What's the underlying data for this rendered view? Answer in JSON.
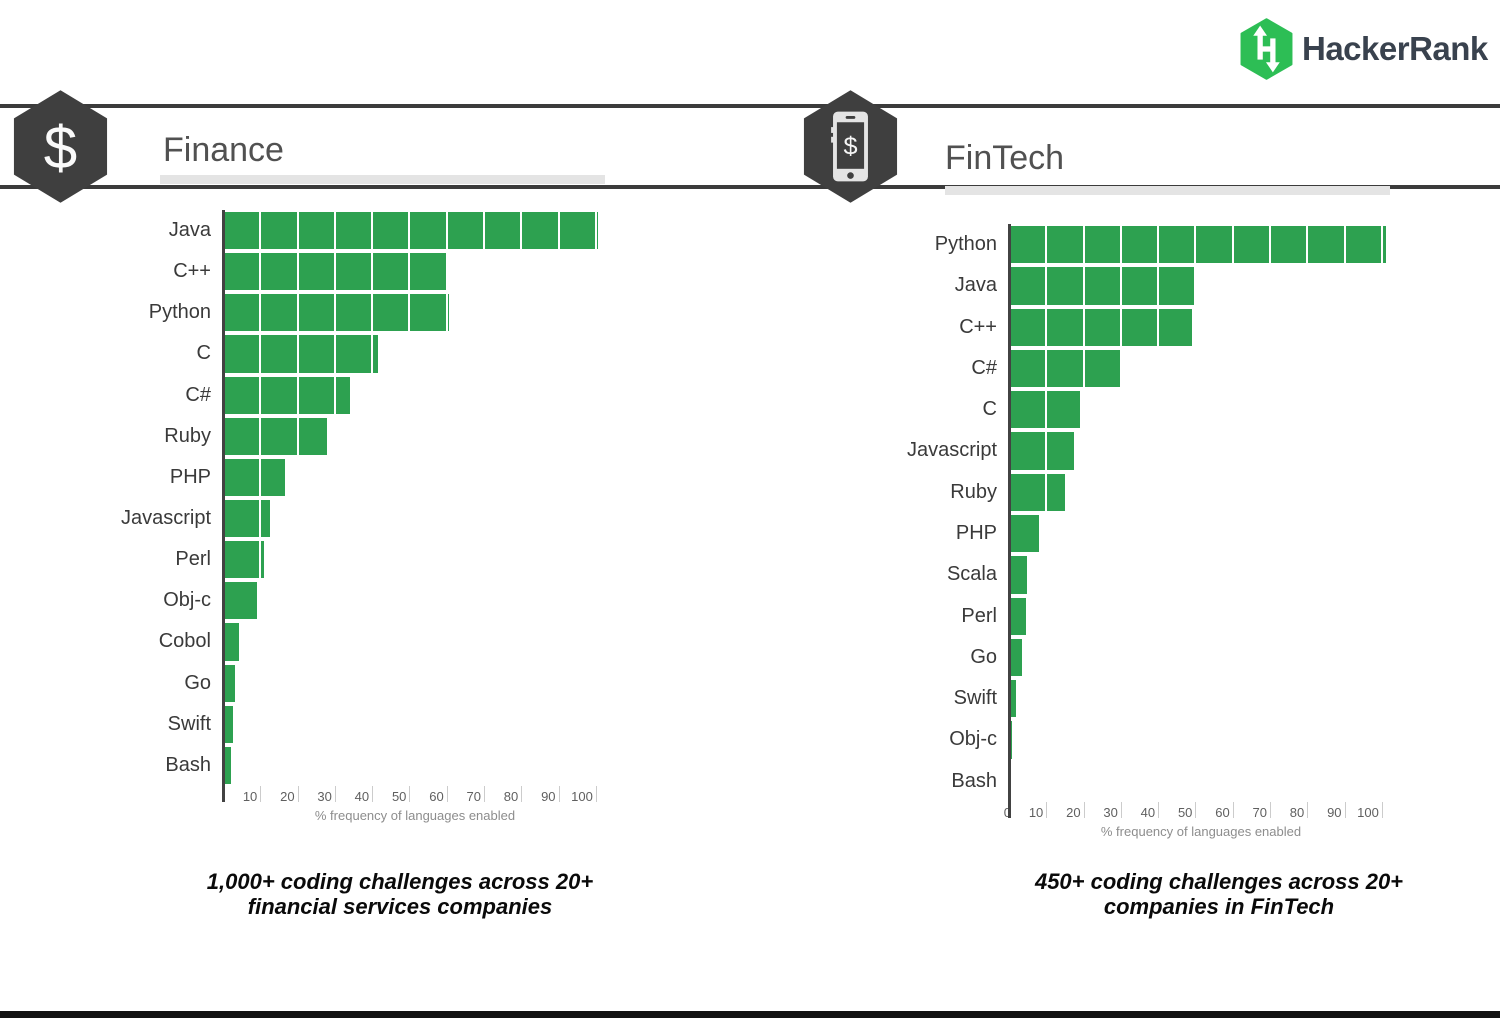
{
  "logo": {
    "brand": "HackerRank",
    "hex_color": "#2dbe55",
    "text_color": "#39424e"
  },
  "header": {
    "band_line_color": "#3b3b3b",
    "badge_color": "#3f3f3f"
  },
  "sections": [
    {
      "title": "Finance",
      "icon": "dollar-hexagon",
      "caption": [
        "1,000+ coding challenges across 20+",
        "financial services companies"
      ]
    },
    {
      "title": "FinTech",
      "icon": "phone-dollar-hexagon",
      "caption": [
        "450+ coding  challenges across 20+",
        "companies in FinTech"
      ]
    }
  ],
  "footer_bar_color": "#121212",
  "chart_data": [
    {
      "type": "bar",
      "orientation": "horizontal",
      "title": "Finance",
      "categories": [
        "Java",
        "C++",
        "Python",
        "C",
        "C#",
        "Ruby",
        "PHP",
        "Javascript",
        "Perl",
        "Obj-c",
        "Cobol",
        "Go",
        "Swift",
        "Bash"
      ],
      "values": [
        100.5,
        60,
        60.5,
        41.5,
        34,
        28,
        16.5,
        12.5,
        11,
        9,
        4.3,
        3.2,
        2.7,
        2.2
      ],
      "xlabel": "% frequency of languages enabled",
      "xticks": [
        10,
        20,
        30,
        40,
        50,
        60,
        70,
        80,
        90,
        100
      ],
      "xlim": [
        0,
        103
      ],
      "bar_color": "#2da150",
      "gridlines": true,
      "legend": "none"
    },
    {
      "type": "bar",
      "orientation": "horizontal",
      "title": "FinTech",
      "categories": [
        "Python",
        "Java",
        "C++",
        "C#",
        "C",
        "Javascript",
        "Ruby",
        "PHP",
        "Scala",
        "Perl",
        "Go",
        "Swift",
        "Obj-c",
        "Bash"
      ],
      "values": [
        101,
        50,
        49,
        30,
        19,
        17.5,
        15,
        8,
        4.8,
        4.6,
        3.4,
        1.9,
        0.8,
        0.5
      ],
      "xlabel": "% frequency of languages enabled",
      "xticks": [
        0,
        10,
        20,
        30,
        40,
        50,
        60,
        70,
        80,
        90,
        100
      ],
      "xlim": [
        0,
        103
      ],
      "bar_color": "#2da150",
      "gridlines": true,
      "legend": "none"
    }
  ]
}
